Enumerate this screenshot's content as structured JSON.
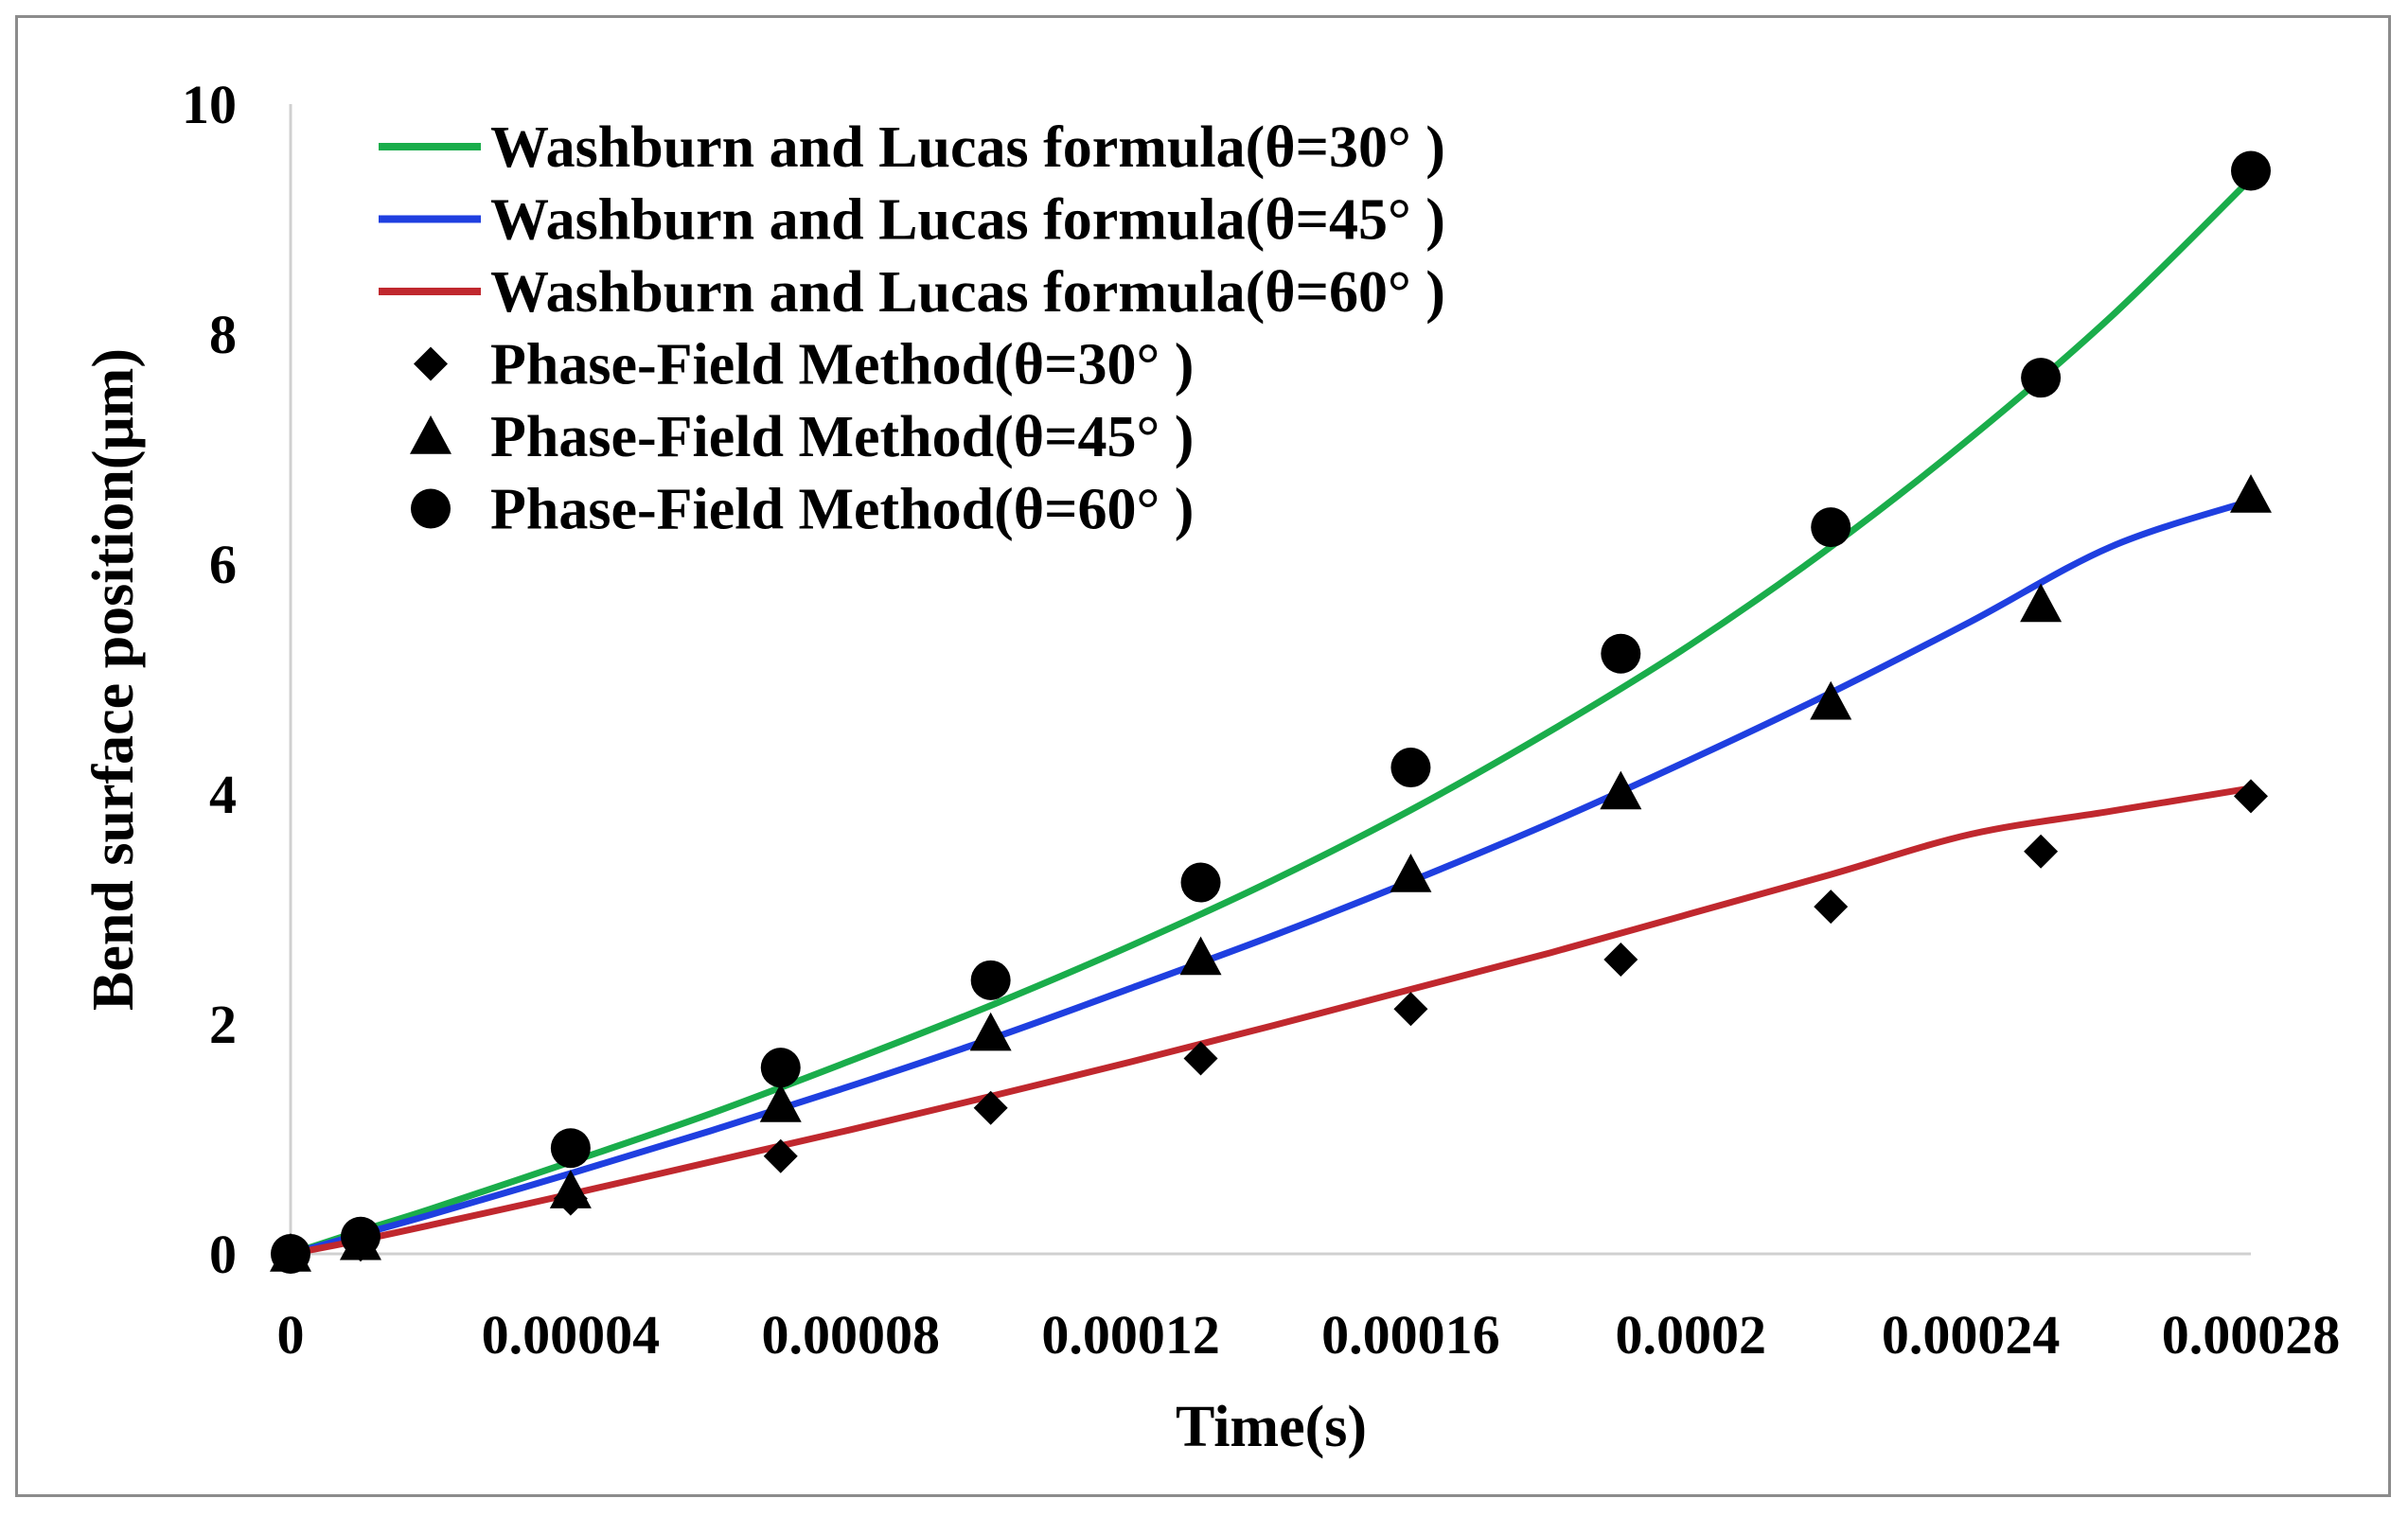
{
  "chart_data": {
    "type": "line",
    "title": "",
    "xlabel": "Time(s)",
    "ylabel": "Bend surface position(μm)",
    "xlim": [
      0,
      0.00028
    ],
    "ylim": [
      0,
      10
    ],
    "x_ticks": [
      0,
      4e-05,
      8e-05,
      0.00012,
      0.00016,
      0.0002,
      0.00024,
      0.00028
    ],
    "x_tick_labels": [
      "0",
      "0.00004",
      "0.00008",
      "0.00012",
      "0.00016",
      "0.0002",
      "0.00024",
      "0.00028"
    ],
    "y_ticks": [
      0,
      2,
      4,
      6,
      8,
      10
    ],
    "y_tick_labels": [
      "0",
      "2",
      "4",
      "6",
      "8",
      "10"
    ],
    "grid": false,
    "legend_position": "top-left",
    "series": [
      {
        "name": "Washburn and Lucas formula(θ=30°)",
        "legend_label": "Washburn and Lucas formula(θ=30°  )",
        "kind": "line",
        "color": "#1aad4b",
        "x": [
          0,
          1e-05,
          2e-05,
          4e-05,
          6e-05,
          8e-05,
          0.0001,
          0.00012,
          0.00014,
          0.00016,
          0.00018,
          0.0002,
          0.00022,
          0.00024,
          0.00026,
          0.00028
        ],
        "values": [
          0,
          0.2,
          0.39,
          0.8,
          1.22,
          1.68,
          2.16,
          2.68,
          3.24,
          3.86,
          4.55,
          5.3,
          6.15,
          7.1,
          8.15,
          9.35
        ]
      },
      {
        "name": "Washburn and Lucas formula(θ=45°)",
        "legend_label": "Washburn and Lucas formula(θ=45°  )",
        "kind": "line",
        "color": "#1f3fe0",
        "x": [
          0,
          1e-05,
          2e-05,
          4e-05,
          6e-05,
          8e-05,
          0.0001,
          0.00012,
          0.00014,
          0.00016,
          0.00018,
          0.0002,
          0.00022,
          0.00024,
          0.00026,
          0.00028
        ],
        "values": [
          0,
          0.17,
          0.34,
          0.7,
          1.07,
          1.46,
          1.87,
          2.31,
          2.76,
          3.24,
          3.75,
          4.3,
          4.88,
          5.5,
          6.15,
          6.55
        ]
      },
      {
        "name": "Washburn and Lucas formula(θ=60°)",
        "legend_label": "Washburn and Lucas formula(θ=60°  )",
        "kind": "line",
        "color": "#c0282e",
        "x": [
          0,
          1e-05,
          2e-05,
          4e-05,
          6e-05,
          8e-05,
          0.0001,
          0.00012,
          0.00014,
          0.00016,
          0.00018,
          0.0002,
          0.00022,
          0.00024,
          0.00026,
          0.00028
        ],
        "values": [
          0,
          0.12,
          0.25,
          0.52,
          0.8,
          1.08,
          1.37,
          1.67,
          1.98,
          2.3,
          2.62,
          2.96,
          3.3,
          3.65,
          3.85,
          4.05
        ]
      },
      {
        "name": "Phase-Field Method(θ=30°)",
        "legend_label": "Phase-Field Method(θ=30°  )",
        "kind": "marker",
        "marker": "diamond",
        "color": "#000000",
        "x": [
          0,
          1e-05,
          4e-05,
          7e-05,
          0.0001,
          0.00013,
          0.00016,
          0.00019,
          0.00022,
          0.00025,
          0.00028
        ],
        "values": [
          0,
          0.08,
          0.48,
          0.85,
          1.27,
          1.7,
          2.13,
          2.56,
          3.02,
          3.5,
          3.98
        ]
      },
      {
        "name": "Phase-Field Method(θ=45°)",
        "legend_label": "Phase-Field Method(θ=45°  )",
        "kind": "marker",
        "marker": "triangle",
        "color": "#000000",
        "x": [
          0,
          1e-05,
          4e-05,
          7e-05,
          0.0001,
          0.00013,
          0.00016,
          0.00019,
          0.00022,
          0.00025,
          0.00028
        ],
        "values": [
          0,
          0.1,
          0.55,
          1.3,
          1.92,
          2.58,
          3.3,
          4.02,
          4.8,
          5.65,
          6.6
        ]
      },
      {
        "name": "Phase-Field Method(θ=60°)",
        "legend_label": "Phase-Field Method(θ=60°  )",
        "kind": "marker",
        "marker": "circle",
        "color": "#000000",
        "x": [
          0,
          1e-05,
          4e-05,
          7e-05,
          0.0001,
          0.00013,
          0.00016,
          0.00019,
          0.00022,
          0.00025,
          0.00028
        ],
        "values": [
          0,
          0.15,
          0.92,
          1.62,
          2.38,
          3.23,
          4.23,
          5.22,
          6.32,
          7.62,
          9.42
        ]
      }
    ]
  }
}
